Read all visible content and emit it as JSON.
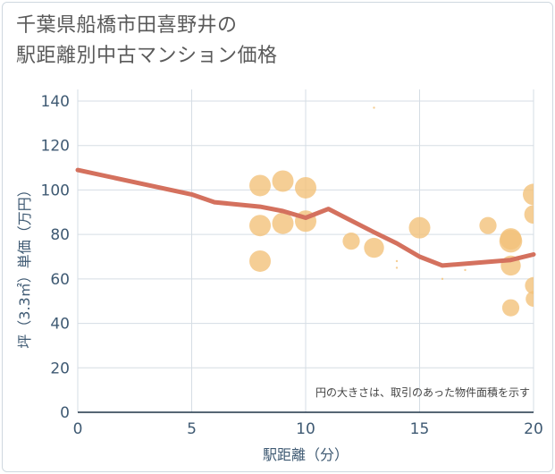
{
  "title": {
    "line1": "千葉県船橋市田喜野井の",
    "line2": "駅距離別中古マンション価格"
  },
  "chart_data": {
    "type": "scatter",
    "title": "千葉県船橋市田喜野井の駅距離別中古マンション価格",
    "xlabel": "駅距離（分）",
    "ylabel": "坪（3.3㎡）単価（万円）",
    "xlim": [
      0,
      20
    ],
    "ylim": [
      0,
      140
    ],
    "xticks": [
      0,
      5,
      10,
      15,
      20
    ],
    "yticks": [
      0,
      20,
      40,
      60,
      80,
      100,
      120,
      140
    ],
    "grid": true,
    "annotation": "円の大きさは、取引のあった物件面積を示す",
    "colors": {
      "bubble": "#f3c27a",
      "trend": "#d4715e",
      "axis_text": "#3f5a73",
      "grid": "#d5dde4"
    },
    "bubbles": [
      {
        "x": 8,
        "y": 102,
        "size": 3
      },
      {
        "x": 8,
        "y": 84,
        "size": 3
      },
      {
        "x": 8,
        "y": 68,
        "size": 3
      },
      {
        "x": 9,
        "y": 104,
        "size": 3
      },
      {
        "x": 9,
        "y": 85,
        "size": 3
      },
      {
        "x": 10,
        "y": 101,
        "size": 3
      },
      {
        "x": 10,
        "y": 86,
        "size": 3
      },
      {
        "x": 12,
        "y": 77,
        "size": 2.4
      },
      {
        "x": 13,
        "y": 74,
        "size": 2.8
      },
      {
        "x": 13,
        "y": 137,
        "size": 0.3
      },
      {
        "x": 14,
        "y": 68,
        "size": 0.3
      },
      {
        "x": 14,
        "y": 65,
        "size": 0.3
      },
      {
        "x": 15,
        "y": 83,
        "size": 3
      },
      {
        "x": 16,
        "y": 60,
        "size": 0.3
      },
      {
        "x": 17,
        "y": 64,
        "size": 0.3
      },
      {
        "x": 18,
        "y": 84,
        "size": 2.4
      },
      {
        "x": 19,
        "y": 78,
        "size": 3
      },
      {
        "x": 19,
        "y": 77,
        "size": 3.2
      },
      {
        "x": 19,
        "y": 66,
        "size": 2.8
      },
      {
        "x": 19,
        "y": 47,
        "size": 2.4
      },
      {
        "x": 20,
        "y": 98,
        "size": 3
      },
      {
        "x": 20,
        "y": 89,
        "size": 2.6
      },
      {
        "x": 20,
        "y": 57,
        "size": 2.4
      },
      {
        "x": 20,
        "y": 51,
        "size": 2.2
      }
    ],
    "trend": {
      "x": [
        0,
        5,
        6,
        8,
        9,
        10,
        11,
        13,
        14,
        15,
        16,
        19,
        20
      ],
      "y": [
        109,
        98,
        94.5,
        92.5,
        90.5,
        87.5,
        91.5,
        81,
        76,
        70,
        66,
        68.5,
        71
      ]
    }
  }
}
